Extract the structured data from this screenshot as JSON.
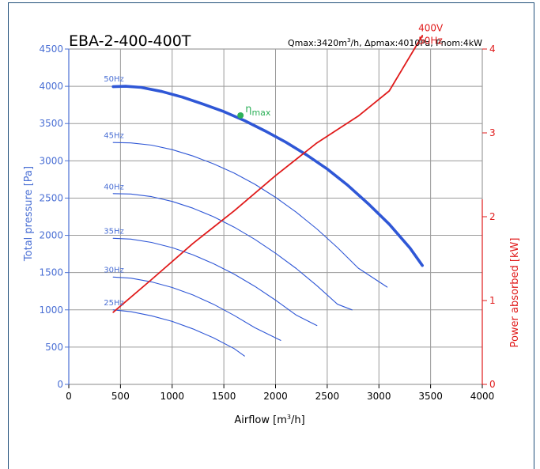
{
  "chart_data": {
    "type": "line",
    "title": "EBA-2-400-400T",
    "subtitle_parts": {
      "qmax": "Qmax:3420m",
      "qmax_sup": "3",
      "rest": "/h, Δpmax:4010Pa, Pnom:4kW"
    },
    "x_axis": {
      "label_text": "Airflow",
      "label_unit": "m",
      "label_unit_sup": "3",
      "label_unit_tail": "/h",
      "ticks": [
        0,
        500,
        1000,
        1500,
        2000,
        2500,
        3000,
        3500,
        4000
      ],
      "range": [
        0,
        4000
      ]
    },
    "y_axis_left": {
      "label": "Total pressure [Pa]",
      "ticks": [
        0,
        500,
        1000,
        1500,
        2000,
        2500,
        3000,
        3500,
        4000,
        4500
      ],
      "range": [
        0,
        4500
      ],
      "color": "#4a6fd4"
    },
    "y_axis_right": {
      "label": "Power absorbed [kW]",
      "ticks": [
        0,
        1,
        2,
        3,
        4
      ],
      "range": [
        0,
        4
      ],
      "color": "#e01b1b"
    },
    "grid": true,
    "series": [
      {
        "name": "50Hz",
        "axis": "left",
        "color": "#2f57d6",
        "emphasis": true,
        "points": [
          [
            430,
            3995
          ],
          [
            550,
            4000
          ],
          [
            700,
            3985
          ],
          [
            900,
            3930
          ],
          [
            1100,
            3855
          ],
          [
            1300,
            3760
          ],
          [
            1500,
            3660
          ],
          [
            1700,
            3540
          ],
          [
            1900,
            3400
          ],
          [
            2100,
            3250
          ],
          [
            2300,
            3080
          ],
          [
            2500,
            2890
          ],
          [
            2700,
            2670
          ],
          [
            2900,
            2420
          ],
          [
            3100,
            2150
          ],
          [
            3300,
            1830
          ],
          [
            3420,
            1595
          ]
        ]
      },
      {
        "name": "45Hz",
        "axis": "left",
        "color": "#2f57d6",
        "points": [
          [
            430,
            3245
          ],
          [
            600,
            3240
          ],
          [
            800,
            3210
          ],
          [
            1000,
            3150
          ],
          [
            1200,
            3065
          ],
          [
            1400,
            2960
          ],
          [
            1600,
            2835
          ],
          [
            1800,
            2685
          ],
          [
            2000,
            2510
          ],
          [
            2200,
            2310
          ],
          [
            2400,
            2085
          ],
          [
            2600,
            1835
          ],
          [
            2800,
            1560
          ],
          [
            3080,
            1305
          ]
        ]
      },
      {
        "name": "40Hz",
        "axis": "left",
        "color": "#2f57d6",
        "points": [
          [
            430,
            2560
          ],
          [
            600,
            2555
          ],
          [
            800,
            2520
          ],
          [
            1000,
            2455
          ],
          [
            1200,
            2365
          ],
          [
            1400,
            2250
          ],
          [
            1600,
            2110
          ],
          [
            1800,
            1945
          ],
          [
            2000,
            1760
          ],
          [
            2200,
            1555
          ],
          [
            2400,
            1325
          ],
          [
            2600,
            1075
          ],
          [
            2740,
            1000
          ]
        ]
      },
      {
        "name": "35Hz",
        "axis": "left",
        "color": "#2f57d6",
        "points": [
          [
            430,
            1960
          ],
          [
            600,
            1950
          ],
          [
            800,
            1905
          ],
          [
            1000,
            1835
          ],
          [
            1200,
            1740
          ],
          [
            1400,
            1620
          ],
          [
            1600,
            1480
          ],
          [
            1800,
            1315
          ],
          [
            2000,
            1130
          ],
          [
            2200,
            930
          ],
          [
            2400,
            790
          ]
        ]
      },
      {
        "name": "30Hz",
        "axis": "left",
        "color": "#2f57d6",
        "points": [
          [
            430,
            1440
          ],
          [
            600,
            1425
          ],
          [
            800,
            1375
          ],
          [
            1000,
            1300
          ],
          [
            1200,
            1200
          ],
          [
            1400,
            1075
          ],
          [
            1600,
            925
          ],
          [
            1800,
            760
          ],
          [
            2050,
            590
          ]
        ]
      },
      {
        "name": "25Hz",
        "axis": "left",
        "color": "#2f57d6",
        "points": [
          [
            430,
            1000
          ],
          [
            600,
            975
          ],
          [
            800,
            920
          ],
          [
            1000,
            845
          ],
          [
            1200,
            745
          ],
          [
            1400,
            625
          ],
          [
            1600,
            480
          ],
          [
            1700,
            380
          ]
        ]
      },
      {
        "name": "400V 50Hz",
        "axis": "right",
        "color": "#e01b1b",
        "points": [
          [
            430,
            0.86
          ],
          [
            800,
            1.25
          ],
          [
            1200,
            1.68
          ],
          [
            1600,
            2.07
          ],
          [
            2000,
            2.49
          ],
          [
            2400,
            2.88
          ],
          [
            2800,
            3.2
          ],
          [
            3100,
            3.5
          ],
          [
            3420,
            4.16
          ]
        ]
      }
    ],
    "curve_labels": [
      {
        "text": "50Hz",
        "x": 430,
        "y": 4000
      },
      {
        "text": "45Hz",
        "x": 430,
        "y": 3240
      },
      {
        "text": "40Hz",
        "x": 430,
        "y": 2555
      },
      {
        "text": "35Hz",
        "x": 430,
        "y": 1960
      },
      {
        "text": "30Hz",
        "x": 430,
        "y": 1440
      },
      {
        "text": "25Hz",
        "x": 430,
        "y": 1000
      }
    ],
    "power_label": {
      "line1": "400V",
      "line2": "50Hz",
      "x": 3420,
      "y": 4.1
    },
    "eta_max": {
      "symbol": "η",
      "sub": "max",
      "x": 1600,
      "y": 3630,
      "color": "#2eb15a"
    }
  }
}
